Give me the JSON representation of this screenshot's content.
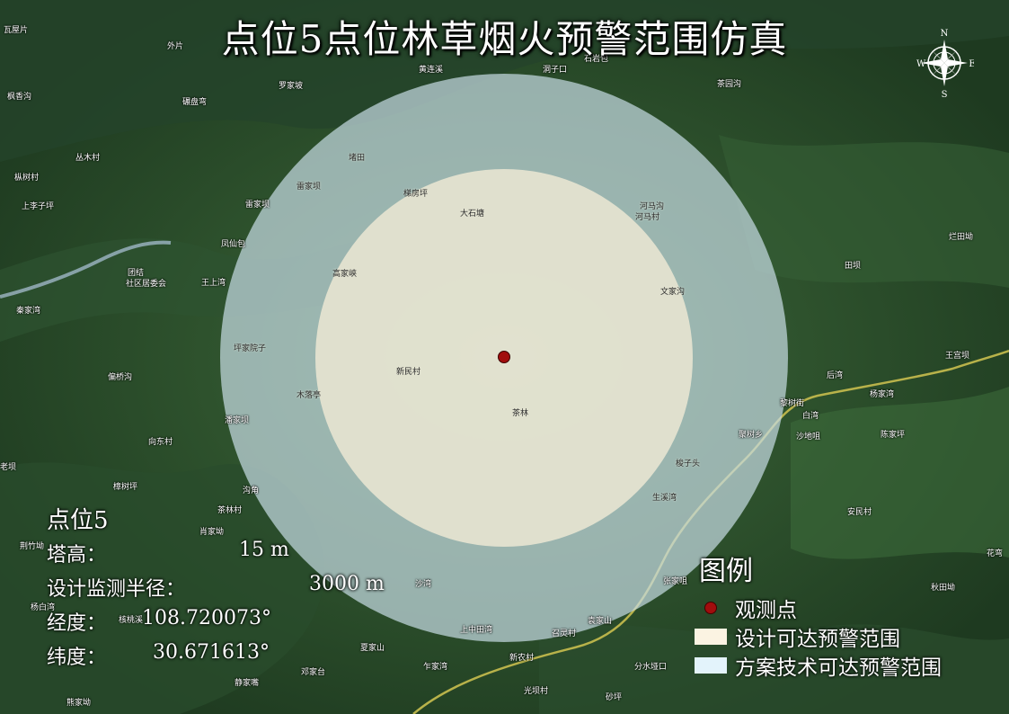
{
  "title": "点位5点位林草烟火预警范围仿真",
  "compass": {
    "n": "N",
    "s": "S",
    "e": "E",
    "w": "W"
  },
  "info": {
    "point_name": "点位5",
    "tower_height_label": "塔高：",
    "tower_height_value": "15 m",
    "radius_label": "设计监测半径：",
    "radius_value": "3000 m",
    "longitude_label": "经度：",
    "longitude_value": "108.720073°",
    "latitude_label": "纬度：",
    "latitude_value": "30.671613°"
  },
  "legend": {
    "title": "图例",
    "items": [
      {
        "label": "观测点",
        "color": "#a10d0d"
      },
      {
        "label": "设计可达预警范围",
        "color": "#fbf3e2"
      },
      {
        "label": "方案技术可达预警范围",
        "color": "#e3f3fb"
      }
    ]
  },
  "colors": {
    "outer_zone": "#c8dde6",
    "inner_zone": "#ece8d4",
    "observation_point": "#a10d0d",
    "river": "#b8b24a"
  },
  "places": [
    "瓦屋片",
    "外片",
    "黄连溪",
    "洞子口",
    "石岩包",
    "碾盘弯",
    "罗家坡",
    "茶园沟",
    "枫香沟",
    "丛木村",
    "堵田",
    "雷家坝",
    "梯房坪",
    "大石塘",
    "河马沟",
    "河马村",
    "雷家坝",
    "枞树村",
    "上李子坪",
    "凤仙包",
    "烂田坳",
    "团结",
    "社区居委会",
    "王上湾",
    "高家峡",
    "文家沟",
    "田坝",
    "秦家湾",
    "坪家院子",
    "新民村",
    "木落亭",
    "茶林",
    "后湾",
    "偏桥沟",
    "王宫坝",
    "杨家湾",
    "潘家坝",
    "白湾",
    "黎树街",
    "聚树乡",
    "沙地咀",
    "陈家坪",
    "向东村",
    "老坝",
    "梭子头",
    "樟树坪",
    "沟角",
    "生溪湾",
    "安民村",
    "茶林村",
    "肖家坳",
    "荆竹坳",
    "花弯",
    "张家咀",
    "秋田坳",
    "沙湾",
    "杨白湾",
    "核桃溪",
    "袁家山",
    "上中田湾",
    "召灵村",
    "夏家山",
    "乍家湾",
    "新农村",
    "分水垭口",
    "邓家台",
    "静家嘴",
    "光坝村",
    "砂坪",
    "熊家坳"
  ]
}
